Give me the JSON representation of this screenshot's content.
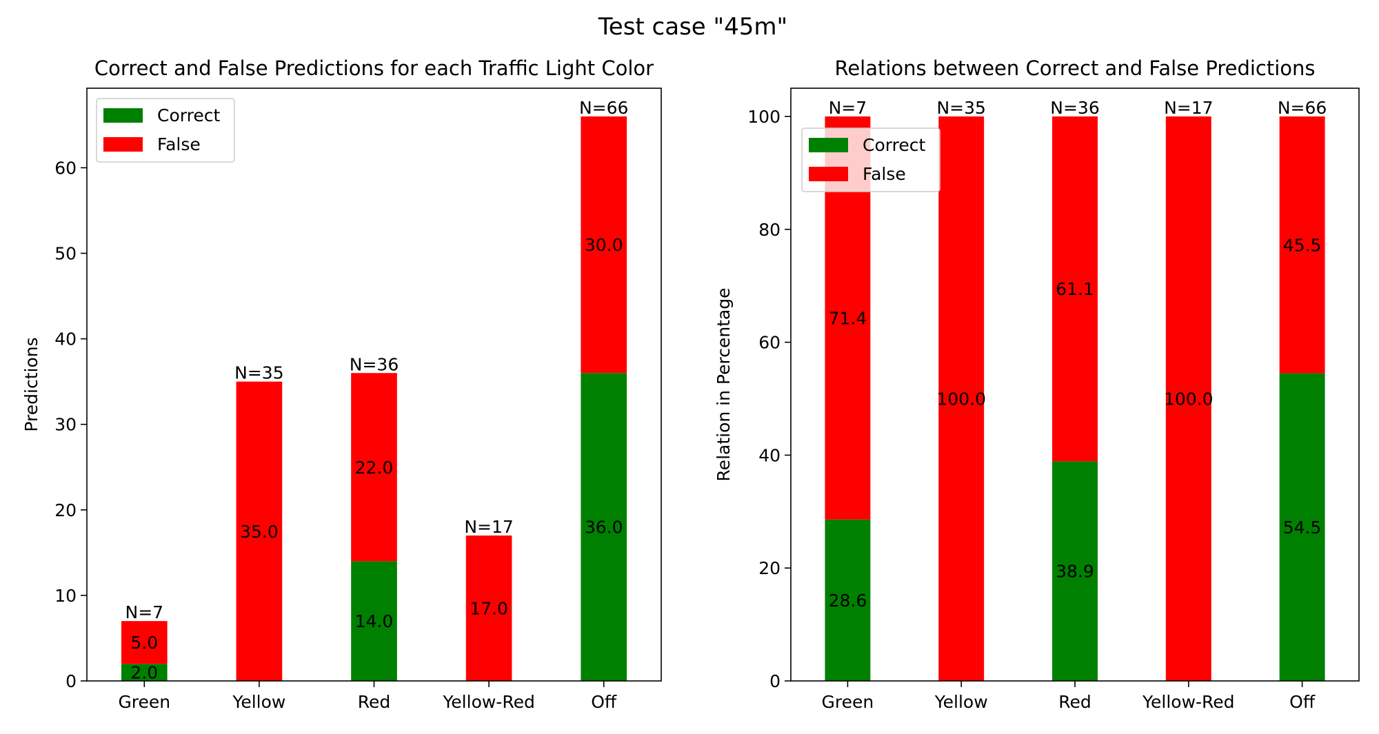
{
  "figure": {
    "suptitle": "Test case \"45m\""
  },
  "colors": {
    "correct": "#008000",
    "false": "#ff0000"
  },
  "chart_data": [
    {
      "type": "bar",
      "stacked": true,
      "title": "Correct and False Predictions for each Traffic Light Color",
      "xlabel": "",
      "ylabel": "Predictions",
      "ylim": [
        0,
        69.3
      ],
      "yticks": [
        0,
        10,
        20,
        30,
        40,
        50,
        60
      ],
      "categories": [
        "Green",
        "Yellow",
        "Red",
        "Yellow-Red",
        "Off"
      ],
      "series": [
        {
          "name": "Correct",
          "values": [
            2,
            0,
            14,
            0,
            36
          ]
        },
        {
          "name": "False",
          "values": [
            5,
            35,
            22,
            17,
            30
          ]
        }
      ],
      "segment_labels": [
        [
          "2.0",
          "",
          "14.0",
          "",
          "36.0"
        ],
        [
          "5.0",
          "35.0",
          "22.0",
          "17.0",
          "30.0"
        ]
      ],
      "top_labels": [
        "N=7",
        "N=35",
        "N=36",
        "N=17",
        "N=66"
      ],
      "legend": {
        "position": "top-left",
        "entries": [
          "Correct",
          "False"
        ]
      },
      "grid": false
    },
    {
      "type": "bar",
      "stacked": true,
      "title": "Relations between Correct and False Predictions",
      "xlabel": "",
      "ylabel": "Relation in Percentage",
      "ylim": [
        0,
        105
      ],
      "yticks": [
        0,
        20,
        40,
        60,
        80,
        100
      ],
      "categories": [
        "Green",
        "Yellow",
        "Red",
        "Yellow-Red",
        "Off"
      ],
      "series": [
        {
          "name": "Correct",
          "values": [
            28.6,
            0,
            38.9,
            0,
            54.5
          ]
        },
        {
          "name": "False",
          "values": [
            71.4,
            100.0,
            61.1,
            100.0,
            45.5
          ]
        }
      ],
      "segment_labels": [
        [
          "28.6",
          "",
          "38.9",
          "",
          "54.5"
        ],
        [
          "71.4",
          "100.0",
          "61.1",
          "100.0",
          "45.5"
        ]
      ],
      "top_labels": [
        "N=7",
        "N=35",
        "N=36",
        "N=17",
        "N=66"
      ],
      "legend": {
        "position": "top-left",
        "entries": [
          "Correct",
          "False"
        ]
      },
      "grid": false
    }
  ]
}
